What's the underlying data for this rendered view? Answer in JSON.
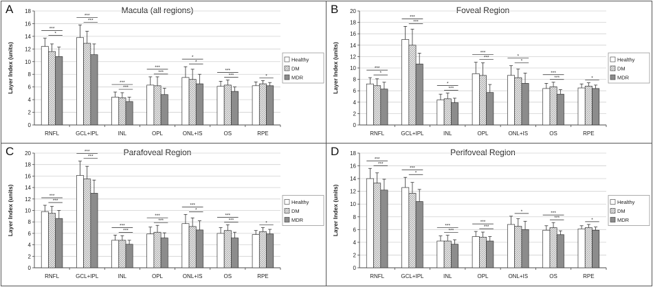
{
  "legend": {
    "healthy": "Healthy",
    "dm": "DM",
    "mdr": "MDR"
  },
  "colors": {
    "healthy": "#ffffff",
    "dm": "#d9d9d9",
    "mdr": "#8c8c8c",
    "stroke": "#333333",
    "grid": "#d0d0d0"
  },
  "chart_data": [
    {
      "type": "bar",
      "panel_letter": "A",
      "title": "Macula (all regions)",
      "ylabel": "Layer Index (units)",
      "xlabel": "",
      "ylim": [
        0,
        18
      ],
      "yticks": [
        0,
        2,
        4,
        6,
        8,
        10,
        12,
        14,
        16,
        18
      ],
      "grid": true,
      "legend_position": "right",
      "categories": [
        "RNFL",
        "GCL+IPL",
        "INL",
        "OPL",
        "ONL+IS",
        "OS",
        "RPE"
      ],
      "series": [
        {
          "name": "Healthy",
          "values": [
            12.4,
            13.8,
            4.4,
            6.3,
            7.5,
            6.1,
            6.2
          ],
          "errors": [
            1.3,
            2.0,
            0.8,
            1.3,
            1.7,
            0.8,
            0.6
          ]
        },
        {
          "name": "DM",
          "values": [
            11.6,
            12.9,
            4.3,
            6.2,
            7.2,
            6.3,
            6.5
          ],
          "errors": [
            1.2,
            1.9,
            0.8,
            1.4,
            1.6,
            0.8,
            0.5
          ]
        },
        {
          "name": "MDR",
          "values": [
            10.8,
            11.1,
            3.7,
            4.8,
            6.5,
            5.3,
            6.2
          ],
          "errors": [
            1.5,
            1.7,
            0.7,
            1.0,
            1.5,
            0.7,
            0.5
          ]
        }
      ],
      "significance": [
        {
          "category": "RNFL",
          "labels": [
            "***",
            "*"
          ]
        },
        {
          "category": "GCL+IPL",
          "labels": [
            "***",
            "***"
          ]
        },
        {
          "category": "INL",
          "labels": [
            "***",
            "***"
          ]
        },
        {
          "category": "OPL",
          "labels": [
            "***",
            "***"
          ]
        },
        {
          "category": "ONL+IS",
          "labels": [
            "*",
            "*"
          ]
        },
        {
          "category": "OS",
          "labels": [
            "***",
            "***"
          ]
        },
        {
          "category": "RPE",
          "labels": [
            "*"
          ]
        }
      ]
    },
    {
      "type": "bar",
      "panel_letter": "B",
      "title": "Foveal Region",
      "ylabel": "Layer Index (units)",
      "xlabel": "",
      "ylim": [
        0,
        20
      ],
      "yticks": [
        0,
        2,
        4,
        6,
        8,
        10,
        12,
        14,
        16,
        18,
        20
      ],
      "grid": true,
      "legend_position": "right",
      "categories": [
        "RNFL",
        "GCL+IPL",
        "INL",
        "OPL",
        "ONL+IS",
        "OS",
        "RPE"
      ],
      "series": [
        {
          "name": "Healthy",
          "values": [
            7.2,
            15.0,
            4.4,
            9.0,
            8.7,
            6.4,
            6.5
          ],
          "errors": [
            1.1,
            2.3,
            1.0,
            2.0,
            1.7,
            0.9,
            0.7
          ]
        },
        {
          "name": "DM",
          "values": [
            6.9,
            14.0,
            4.6,
            8.7,
            8.3,
            6.7,
            6.8
          ],
          "errors": [
            1.2,
            2.8,
            1.0,
            2.2,
            1.5,
            0.8,
            0.6
          ]
        },
        {
          "name": "MDR",
          "values": [
            6.3,
            10.7,
            3.9,
            5.7,
            7.3,
            5.4,
            6.4
          ],
          "errors": [
            1.2,
            1.9,
            0.8,
            1.4,
            1.8,
            0.8,
            0.6
          ]
        }
      ],
      "significance": [
        {
          "category": "RNFL",
          "labels": [
            "***",
            "*"
          ]
        },
        {
          "category": "GCL+IPL",
          "labels": [
            "***",
            "***"
          ]
        },
        {
          "category": "INL",
          "labels": [
            "*",
            "***"
          ]
        },
        {
          "category": "OPL",
          "labels": [
            "***",
            "***"
          ]
        },
        {
          "category": "ONL+IS",
          "labels": [
            "*",
            "*"
          ]
        },
        {
          "category": "OS",
          "labels": [
            "***",
            "***"
          ]
        },
        {
          "category": "RPE",
          "labels": [
            "*"
          ]
        }
      ]
    },
    {
      "type": "bar",
      "panel_letter": "C",
      "title": "Parafoveal Region",
      "ylabel": "Layer Index (units)",
      "xlabel": "",
      "ylim": [
        0,
        20
      ],
      "yticks": [
        0,
        2,
        4,
        6,
        8,
        10,
        12,
        14,
        16,
        18,
        20
      ],
      "grid": true,
      "legend_position": "right",
      "categories": [
        "RNFL",
        "GCL+IPL",
        "INL",
        "OPL",
        "ONL+IS",
        "OS",
        "RPE"
      ],
      "series": [
        {
          "name": "Healthy",
          "values": [
            9.8,
            16.1,
            4.8,
            5.9,
            7.7,
            6.0,
            5.8
          ],
          "errors": [
            1.1,
            2.5,
            0.9,
            1.2,
            1.6,
            1.0,
            0.7
          ]
        },
        {
          "name": "DM",
          "values": [
            9.5,
            15.5,
            4.8,
            6.2,
            7.2,
            6.5,
            6.3
          ],
          "errors": [
            1.2,
            2.2,
            0.8,
            1.2,
            1.5,
            1.0,
            0.7
          ]
        },
        {
          "name": "MDR",
          "values": [
            8.6,
            13.0,
            4.1,
            5.2,
            6.6,
            5.2,
            5.9
          ],
          "errors": [
            1.4,
            2.3,
            0.7,
            0.9,
            1.6,
            1.0,
            0.8
          ]
        }
      ],
      "significance": [
        {
          "category": "RNFL",
          "labels": [
            "***",
            "***"
          ]
        },
        {
          "category": "GCL+IPL",
          "labels": [
            "***",
            "***"
          ]
        },
        {
          "category": "INL",
          "labels": [
            "***",
            "***"
          ]
        },
        {
          "category": "OPL",
          "labels": [
            "***",
            "***"
          ]
        },
        {
          "category": "ONL+IS",
          "labels": [
            "***",
            "*"
          ]
        },
        {
          "category": "OS",
          "labels": [
            "***",
            "***"
          ]
        },
        {
          "category": "RPE",
          "labels": [
            "*"
          ]
        }
      ]
    },
    {
      "type": "bar",
      "panel_letter": "D",
      "title": "Perifoveal Region",
      "ylabel": "Layer Index (units)",
      "xlabel": "",
      "ylim": [
        0,
        18
      ],
      "yticks": [
        0,
        2,
        4,
        6,
        8,
        10,
        12,
        14,
        16,
        18
      ],
      "grid": true,
      "legend_position": "right",
      "categories": [
        "RNFL",
        "GCL+IPL",
        "INL",
        "OPL",
        "ONL+IS",
        "OS",
        "RPE"
      ],
      "series": [
        {
          "name": "Healthy",
          "values": [
            14.0,
            12.6,
            4.2,
            4.9,
            6.8,
            5.9,
            6.1
          ],
          "errors": [
            1.6,
            1.6,
            0.8,
            0.8,
            1.3,
            0.7,
            0.5
          ]
        },
        {
          "name": "DM",
          "values": [
            13.3,
            11.7,
            4.2,
            4.8,
            6.5,
            6.3,
            6.3
          ],
          "errors": [
            1.6,
            1.7,
            0.9,
            0.8,
            1.2,
            0.8,
            0.5
          ]
        },
        {
          "name": "MDR",
          "values": [
            12.2,
            10.4,
            3.7,
            4.2,
            6.0,
            5.2,
            5.9
          ],
          "errors": [
            1.7,
            1.9,
            0.7,
            0.7,
            1.3,
            0.6,
            0.5
          ]
        }
      ],
      "significance": [
        {
          "category": "RNFL",
          "labels": [
            "***",
            "***"
          ]
        },
        {
          "category": "GCL+IPL",
          "labels": [
            "***",
            "*"
          ]
        },
        {
          "category": "INL",
          "labels": [
            "***",
            "***"
          ]
        },
        {
          "category": "OPL",
          "labels": [
            "***",
            "***"
          ]
        },
        {
          "category": "ONL+IS",
          "labels": [
            "*"
          ]
        },
        {
          "category": "OS",
          "labels": [
            "***",
            "***"
          ]
        },
        {
          "category": "RPE",
          "labels": [
            "*"
          ]
        }
      ]
    }
  ]
}
